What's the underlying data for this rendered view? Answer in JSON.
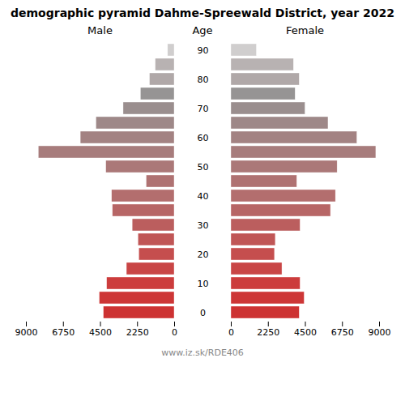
{
  "chart_data": {
    "type": "bar",
    "orientation": "horizontal",
    "title": "demographic pyramid Dahme-Spreewald District, year 2022",
    "ylabel": "Age",
    "caption": "www.iz.sk/RDE406",
    "categories": [
      "0",
      null,
      "10",
      null,
      "20",
      null,
      "30",
      null,
      "40",
      null,
      "50",
      null,
      "60",
      null,
      "70",
      null,
      "80",
      null,
      "90"
    ],
    "series": [
      {
        "name": "Male",
        "values": [
          4300,
          4550,
          4100,
          2900,
          2150,
          2200,
          2550,
          3750,
          3800,
          1700,
          4150,
          8250,
          5700,
          4750,
          3100,
          2050,
          1500,
          1150,
          400
        ],
        "colors": [
          "#cd3232",
          "#cd3636",
          "#cc3c3c",
          "#c94545",
          "#c54e4e",
          "#c05656",
          "#bb5e5e",
          "#b76666",
          "#b36e6e",
          "#af7272",
          "#ab7878",
          "#a77c7c",
          "#a38282",
          "#9e8888",
          "#9a8e8e",
          "#969494",
          "#b0a8a8",
          "#b8b2b2",
          "#d0cece"
        ]
      },
      {
        "name": "Female",
        "values": [
          4150,
          4450,
          4200,
          3100,
          2650,
          2700,
          4200,
          6050,
          6350,
          4000,
          6450,
          8800,
          7650,
          5900,
          4500,
          3900,
          4150,
          3800,
          1550
        ],
        "colors": [
          "#cd3232",
          "#cd3636",
          "#cc3c3c",
          "#c94545",
          "#c54e4e",
          "#c05656",
          "#bb5e5e",
          "#b76666",
          "#b36e6e",
          "#af7272",
          "#ab7878",
          "#a77c7c",
          "#a38282",
          "#9e8888",
          "#9a8e8e",
          "#969494",
          "#b0a8a8",
          "#b8b2b2",
          "#d0cece"
        ]
      }
    ],
    "xlim": [
      0,
      9000
    ],
    "xticks": [
      0,
      2250,
      4500,
      6750,
      9000
    ],
    "grid": false
  }
}
